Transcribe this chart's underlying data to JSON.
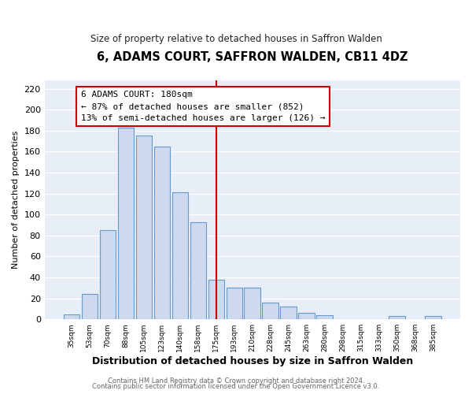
{
  "title": "6, ADAMS COURT, SAFFRON WALDEN, CB11 4DZ",
  "subtitle": "Size of property relative to detached houses in Saffron Walden",
  "xlabel": "Distribution of detached houses by size in Saffron Walden",
  "ylabel": "Number of detached properties",
  "bar_labels": [
    "35sqm",
    "53sqm",
    "70sqm",
    "88sqm",
    "105sqm",
    "123sqm",
    "140sqm",
    "158sqm",
    "175sqm",
    "193sqm",
    "210sqm",
    "228sqm",
    "245sqm",
    "263sqm",
    "280sqm",
    "298sqm",
    "315sqm",
    "333sqm",
    "350sqm",
    "368sqm",
    "385sqm"
  ],
  "bar_values": [
    5,
    24,
    85,
    183,
    175,
    165,
    121,
    93,
    38,
    30,
    30,
    16,
    12,
    6,
    4,
    0,
    0,
    0,
    3,
    0,
    3
  ],
  "bar_color": "#ccd9ee",
  "bar_edge_color": "#6699cc",
  "vline_x": 8,
  "vline_color": "#cc0000",
  "annotation_title": "6 ADAMS COURT: 180sqm",
  "annotation_line1": "← 87% of detached houses are smaller (852)",
  "annotation_line2": "13% of semi-detached houses are larger (126) →",
  "annotation_box_color": "#ffffff",
  "annotation_box_edge": "#cc0000",
  "ylim": [
    0,
    228
  ],
  "yticks": [
    0,
    20,
    40,
    60,
    80,
    100,
    120,
    140,
    160,
    180,
    200,
    220
  ],
  "footer1": "Contains HM Land Registry data © Crown copyright and database right 2024.",
  "footer2": "Contains public sector information licensed under the Open Government Licence v3.0.",
  "fig_bg": "#ffffff",
  "plot_bg": "#e8eef8",
  "grid_color": "#ffffff",
  "title_fontsize": 10.5,
  "subtitle_fontsize": 8.5
}
